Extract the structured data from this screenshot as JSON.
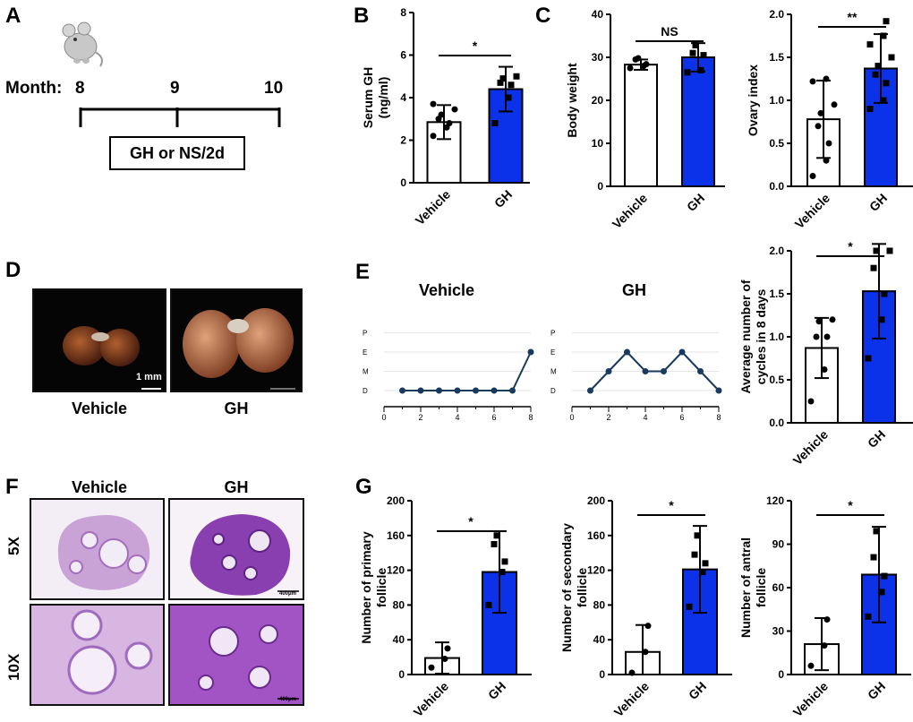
{
  "panels": {
    "A": "A",
    "B": "B",
    "C": "C",
    "D": "D",
    "E": "E",
    "F": "F",
    "G": "G"
  },
  "timeline": {
    "month_label": "Month:",
    "months": [
      "8",
      "9",
      "10"
    ],
    "treatment_label": "GH or NS/2d"
  },
  "images": {
    "d_vehicle_caption": "Vehicle",
    "d_gh_caption": "GH",
    "scale_bar": "1 mm",
    "f_vehicle_header": "Vehicle",
    "f_gh_header": "GH",
    "mag_5x": "5X",
    "mag_10x": "10X",
    "scale_400": "400μm"
  },
  "estrous": {
    "vehicle_title": "Vehicle",
    "gh_title": "GH"
  },
  "colors": {
    "gh": "#0b32e8",
    "vehicle": "#ffffff",
    "line": "#173a5e"
  },
  "chart_data": [
    {
      "id": "serumGH",
      "type": "bar",
      "categories": [
        "Vehicle",
        "GH"
      ],
      "values": [
        2.85,
        4.4
      ],
      "errors": [
        0.8,
        1.05
      ],
      "points": [
        [
          2.2,
          2.6,
          2.8,
          3.0,
          3.2,
          3.45,
          3.7
        ],
        [
          2.8,
          4.0,
          4.6,
          4.7,
          4.9,
          5.0
        ]
      ],
      "ylabel": "Serum GH\n(ng/ml)",
      "ylim": [
        0,
        8
      ],
      "yticks": [
        0,
        2,
        4,
        6,
        8
      ],
      "sig": "*"
    },
    {
      "id": "bodyWeight",
      "type": "bar",
      "categories": [
        "Vehicle",
        "GH"
      ],
      "values": [
        28.3,
        30.0
      ],
      "errors": [
        1.2,
        3.3
      ],
      "points": [
        [
          27.5,
          28.0,
          28.4,
          29.5,
          29.8
        ],
        [
          26.5,
          27.0,
          30.5,
          31.0,
          32.8
        ]
      ],
      "ylabel": "Body weight",
      "ylim": [
        0,
        40
      ],
      "yticks": [
        0,
        10,
        20,
        30,
        40
      ],
      "sig": "NS"
    },
    {
      "id": "ovaryIndex",
      "type": "bar",
      "categories": [
        "Vehicle",
        "GH"
      ],
      "values": [
        0.78,
        1.37
      ],
      "errors": [
        0.45,
        0.4
      ],
      "points": [
        [
          0.12,
          0.3,
          0.5,
          0.7,
          0.85,
          0.95,
          1.22,
          1.25
        ],
        [
          0.9,
          1.0,
          1.2,
          1.3,
          1.4,
          1.5,
          1.65,
          1.75,
          1.92
        ]
      ],
      "ylabel": "Ovary index",
      "ylim": [
        0,
        2.0
      ],
      "yticks": [
        0.0,
        0.5,
        1.0,
        1.5,
        2.0
      ],
      "sig": "**"
    },
    {
      "id": "vehicleCycle",
      "type": "line",
      "x": [
        1,
        2,
        3,
        4,
        5,
        6,
        7,
        8
      ],
      "y": [
        0,
        0,
        0,
        0,
        0,
        0,
        0,
        2
      ],
      "xticks": [
        0,
        2,
        4,
        6,
        8
      ],
      "ycats": [
        "D",
        "M",
        "E",
        "P"
      ],
      "title": "Vehicle"
    },
    {
      "id": "ghCycle",
      "type": "line",
      "x": [
        1,
        2,
        3,
        4,
        5,
        6,
        7,
        8
      ],
      "y": [
        0,
        1,
        2,
        1,
        1,
        2,
        1,
        0
      ],
      "xticks": [
        0,
        2,
        4,
        6,
        8
      ],
      "ycats": [
        "D",
        "M",
        "E",
        "P"
      ],
      "title": "GH"
    },
    {
      "id": "avgCycles",
      "type": "bar",
      "categories": [
        "Vehicle",
        "GH"
      ],
      "values": [
        0.87,
        1.53
      ],
      "errors": [
        0.35,
        0.55
      ],
      "points": [
        [
          0.25,
          0.62,
          1.0,
          1.0,
          1.18,
          1.2
        ],
        [
          0.75,
          1.2,
          1.5,
          1.8,
          2.0,
          2.0
        ]
      ],
      "ylabel": "Average number of\ncycles in 8 days",
      "ylim": [
        0,
        2.0
      ],
      "yticks": [
        0.0,
        0.5,
        1.0,
        1.5,
        2.0
      ],
      "sig": "*"
    },
    {
      "id": "primary",
      "type": "bar",
      "categories": [
        "Vehicle",
        "GH"
      ],
      "values": [
        19,
        118
      ],
      "errors": [
        18,
        47
      ],
      "points": [
        [
          8,
          18,
          30
        ],
        [
          80,
          118,
          130,
          150,
          160
        ]
      ],
      "ylabel": "Number of primary\nfollicle",
      "ylim": [
        0,
        200
      ],
      "yticks": [
        0,
        40,
        80,
        120,
        160,
        200
      ],
      "sig": "*"
    },
    {
      "id": "secondary",
      "type": "bar",
      "categories": [
        "Vehicle",
        "GH"
      ],
      "values": [
        26,
        121
      ],
      "errors": [
        31,
        50
      ],
      "points": [
        [
          2,
          26,
          56
        ],
        [
          78,
          118,
          128,
          138,
          160
        ]
      ],
      "ylabel": "Number of secondary\nfollicle",
      "ylim": [
        0,
        200
      ],
      "yticks": [
        0,
        40,
        80,
        120,
        160,
        200
      ],
      "sig": "*"
    },
    {
      "id": "antral",
      "type": "bar",
      "categories": [
        "Vehicle",
        "GH"
      ],
      "values": [
        21,
        69
      ],
      "errors": [
        18,
        33
      ],
      "points": [
        [
          6,
          20,
          38
        ],
        [
          40,
          57,
          68,
          81,
          99
        ]
      ],
      "ylabel": "Number of antral\nfollicle",
      "ylim": [
        0,
        120
      ],
      "yticks": [
        0,
        30,
        60,
        90,
        120
      ],
      "sig": "*"
    }
  ]
}
